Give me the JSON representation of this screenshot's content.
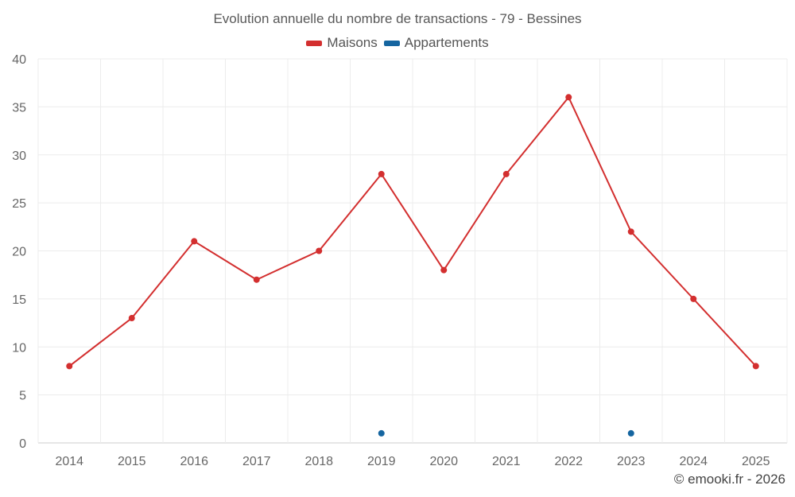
{
  "chart_data": {
    "type": "line",
    "title": "Evolution annuelle du nombre de transactions - 79 - Bessines",
    "categories": [
      "2014",
      "2015",
      "2016",
      "2017",
      "2018",
      "2019",
      "2020",
      "2021",
      "2022",
      "2023",
      "2024",
      "2025"
    ],
    "series": [
      {
        "name": "Maisons",
        "color": "#d32f2f",
        "values": [
          8,
          13,
          21,
          17,
          20,
          28,
          18,
          28,
          36,
          22,
          15,
          8
        ]
      },
      {
        "name": "Appartements",
        "color": "#1565a0",
        "values": [
          null,
          null,
          null,
          null,
          null,
          1,
          null,
          null,
          null,
          1,
          null,
          null
        ]
      }
    ],
    "ylim": [
      0,
      40
    ],
    "yticks": [
      0,
      5,
      10,
      15,
      20,
      25,
      30,
      35,
      40
    ],
    "grid": true,
    "legend": "top-center"
  },
  "footer": {
    "credit": "© emooki.fr - 2026"
  }
}
